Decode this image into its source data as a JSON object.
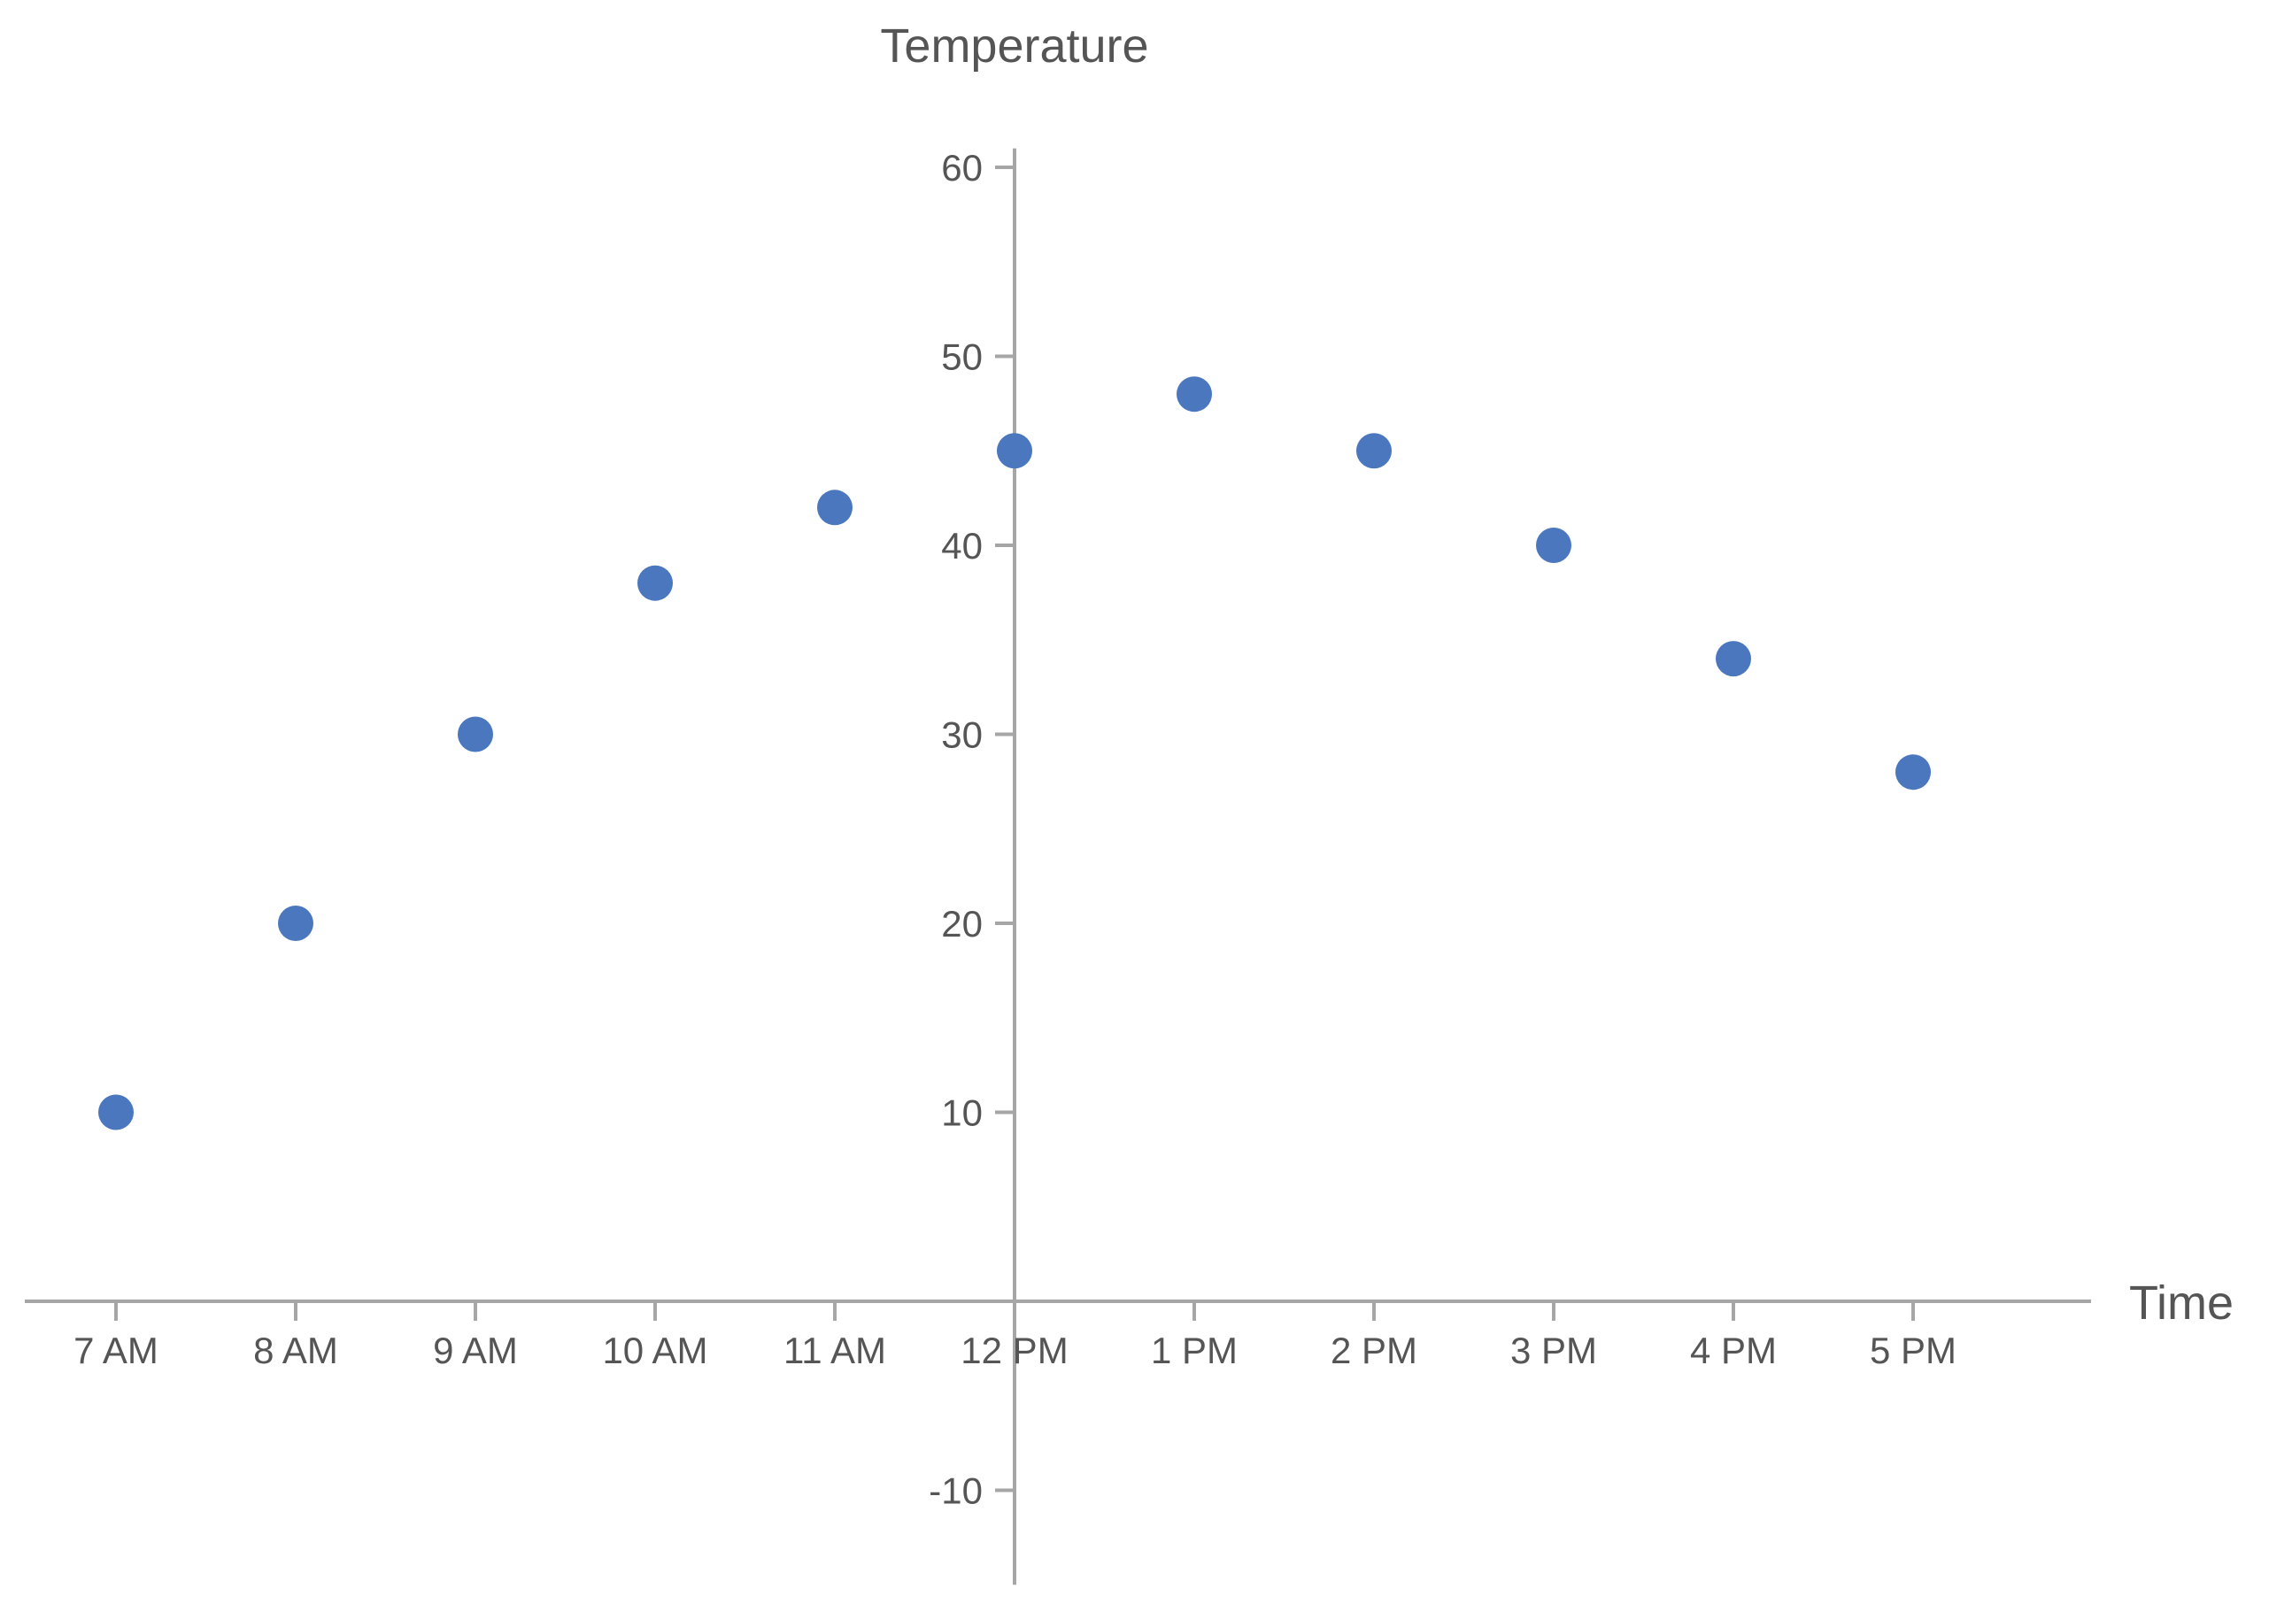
{
  "chart_data": {
    "type": "scatter",
    "title": "",
    "xlabel": "Time",
    "ylabel": "Temperature",
    "x": [
      "7 AM",
      "8 AM",
      "9 AM",
      "10 AM",
      "11 AM",
      "12 PM",
      "1 PM",
      "2 PM",
      "3 PM",
      "4 PM",
      "5 PM"
    ],
    "y": [
      10,
      20,
      30,
      38,
      42,
      45,
      48,
      45,
      40,
      34,
      28
    ],
    "y_ticks": [
      -10,
      10,
      20,
      30,
      40,
      50,
      60
    ],
    "ylim": [
      -15,
      61
    ],
    "x_axis_crosses_y_at": 0,
    "y_axis_crosses_x_at": "12 PM",
    "grid": false,
    "legend": "none",
    "colors": {
      "points": "#4a77bd",
      "axis": "#a6a6a6",
      "text": "#555555"
    }
  }
}
